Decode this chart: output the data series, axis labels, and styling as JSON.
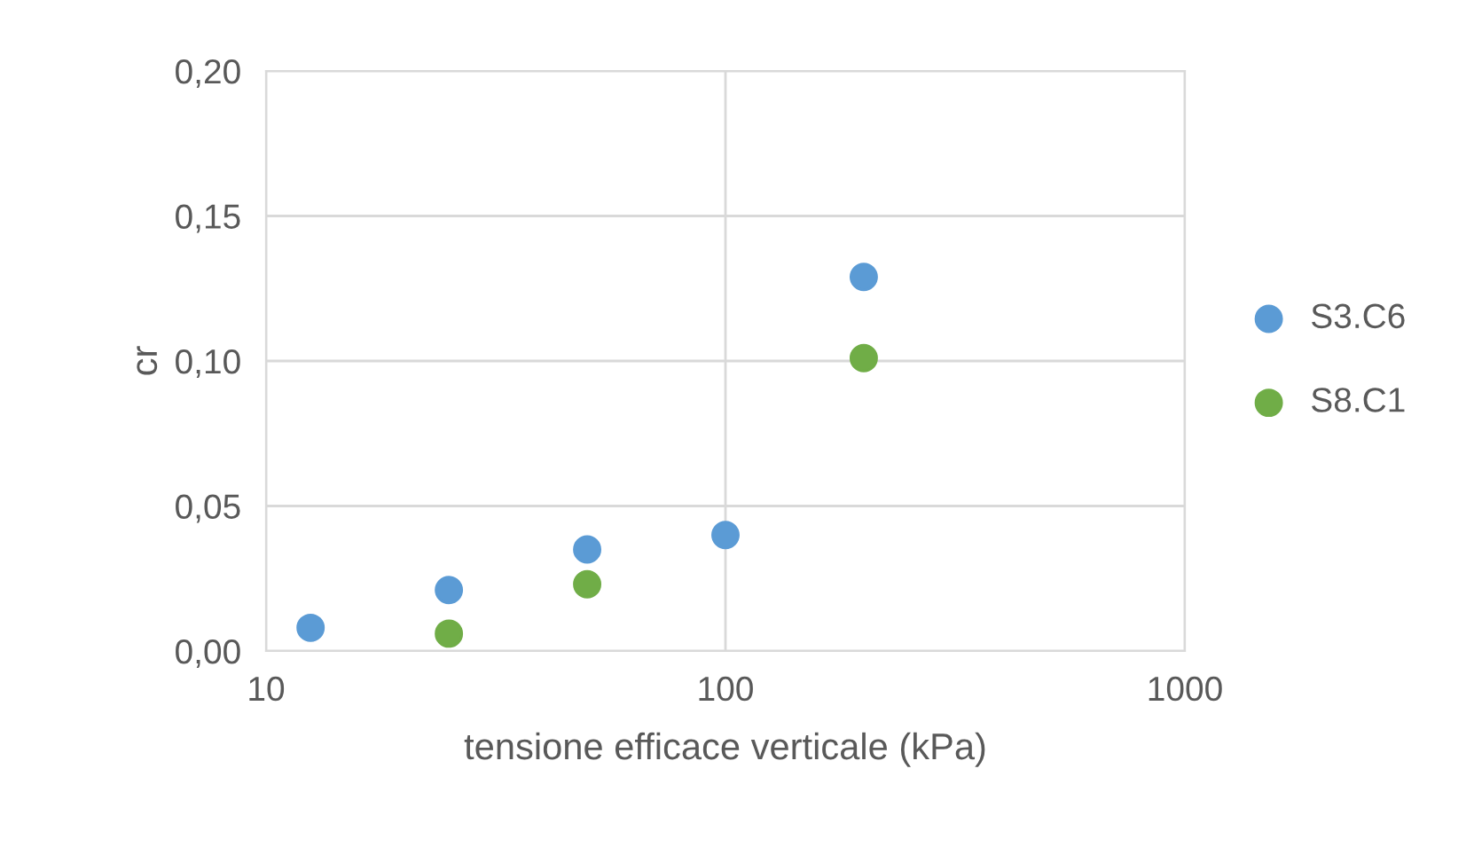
{
  "chart_data": {
    "type": "scatter",
    "xlabel": "tensione efficace verticale (kPa)",
    "ylabel": "cr",
    "log": "x",
    "xlim": [
      10,
      1000
    ],
    "xticks": [
      10,
      100,
      1000
    ],
    "ylim": [
      0,
      0.2
    ],
    "yticks": [
      {
        "value": 0,
        "label": "0,00"
      },
      {
        "value": 0.05,
        "label": "0,05"
      },
      {
        "value": 0.1,
        "label": "0,10"
      },
      {
        "value": 0.15,
        "label": "0,15"
      },
      {
        "value": 0.2,
        "label": "0,20"
      }
    ],
    "grid": true,
    "legend": "right",
    "marker": "circle",
    "series": [
      {
        "name": "S3.C6",
        "color": "#5b9bd5",
        "x": [
          12.5,
          25,
          50,
          100,
          200
        ],
        "values": [
          0.008,
          0.021,
          0.035,
          0.04,
          0.129
        ]
      },
      {
        "name": "S8.C1",
        "color": "#70ad47",
        "x": [
          25,
          50,
          200
        ],
        "values": [
          0.006,
          0.023,
          0.101
        ]
      }
    ]
  }
}
